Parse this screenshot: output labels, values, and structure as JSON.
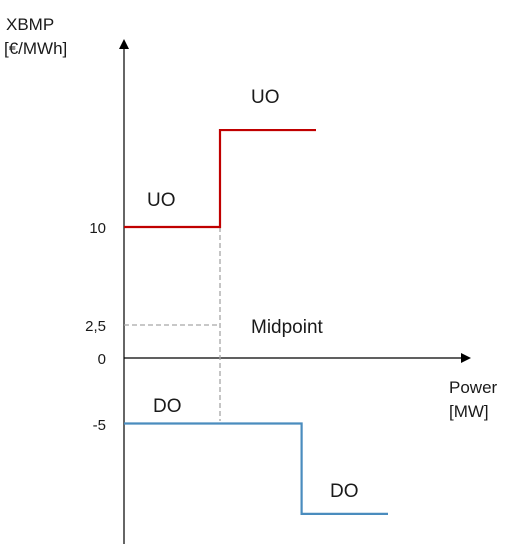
{
  "chart_data": {
    "type": "line",
    "title": "",
    "ylabel": "XBMP",
    "ylabel_unit": "[€/MWh]",
    "xlabel": "Power",
    "xlabel_unit": "[MW]",
    "yticks": [
      "10",
      "2,5",
      "0",
      "-5"
    ],
    "ytick_values": [
      10,
      2.5,
      0,
      -5
    ],
    "midpoint_label": "Midpoint",
    "midpoint_value": 2.5,
    "series": [
      {
        "name": "UO",
        "color": "#c00000",
        "points": [
          [
            0,
            10
          ],
          [
            1,
            10
          ],
          [
            1,
            17.4
          ],
          [
            2,
            17.4
          ]
        ],
        "segment_labels": [
          "UO",
          "UO"
        ]
      },
      {
        "name": "DO",
        "color": "#4a8cbe",
        "points": [
          [
            0,
            -5
          ],
          [
            1.85,
            -5
          ],
          [
            1.85,
            -11.9
          ],
          [
            2.75,
            -11.9
          ]
        ],
        "segment_labels": [
          "DO",
          "DO"
        ]
      }
    ]
  }
}
